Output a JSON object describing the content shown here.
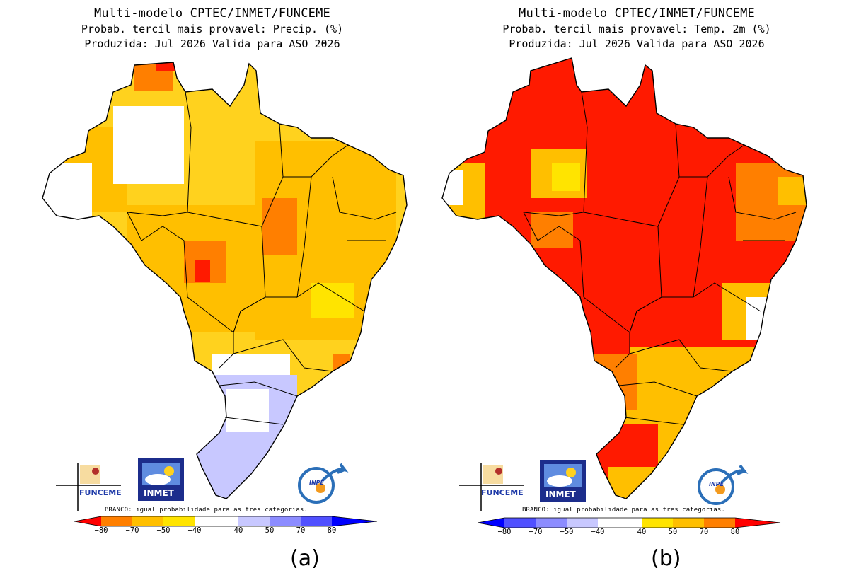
{
  "panels": [
    {
      "title_line1": "Multi-modelo CPTEC/INMET/FUNCEME",
      "title_line2": "Probab. tercil mais provavel: Precip. (%)",
      "title_line3": "Produzida: Jul 2026   Valida para ASO 2026",
      "legend_note": "BRANCO: igual probabilidade para as tres categorias.",
      "colorbar_labels": [
        "−80",
        "−70",
        "−50",
        "−40",
        "40",
        "50",
        "70",
        "80"
      ],
      "colorbar_colors": [
        "#ff0000",
        "#ff7f00",
        "#ffbf00",
        "#ffe400",
        "#ffffff",
        "#c8c8ff",
        "#8c8cff",
        "#5050ff",
        "#0000ff"
      ],
      "caption": "(a)",
      "logos": {
        "funceme": "FUNCEME",
        "inmet": "INMET",
        "inpe": "INPE"
      }
    },
    {
      "title_line1": "Multi-modelo CPTEC/INMET/FUNCEME",
      "title_line2": "Probab. tercil mais provavel: Temp. 2m (%)",
      "title_line3": "Produzida: Jul 2026   Valida para ASO 2026",
      "legend_note": "BRANCO: igual probabilidade para as tres categorias.",
      "colorbar_labels": [
        "−80",
        "−70",
        "−50",
        "−40",
        "40",
        "50",
        "70",
        "80"
      ],
      "colorbar_colors": [
        "#0000ff",
        "#5050ff",
        "#8c8cff",
        "#c8c8ff",
        "#ffffff",
        "#ffe400",
        "#ffbf00",
        "#ff7f00",
        "#ff0000"
      ],
      "caption": "(b)",
      "logos": {
        "funceme": "FUNCEME",
        "inmet": "INMET",
        "inpe": "INPE"
      }
    }
  ],
  "map_fill": {
    "a": {
      "dominant": "#ffd21e",
      "secondary": "#ffbf00",
      "hot": "#ff7f00",
      "extreme": "#ff1a00",
      "south": "#c8c8ff"
    },
    "b": {
      "dominant": "#ff1a00",
      "secondary": "#ff7f00",
      "hot": "#ffbf00",
      "extreme": "#ffe400",
      "south": "#ff7f00"
    }
  }
}
